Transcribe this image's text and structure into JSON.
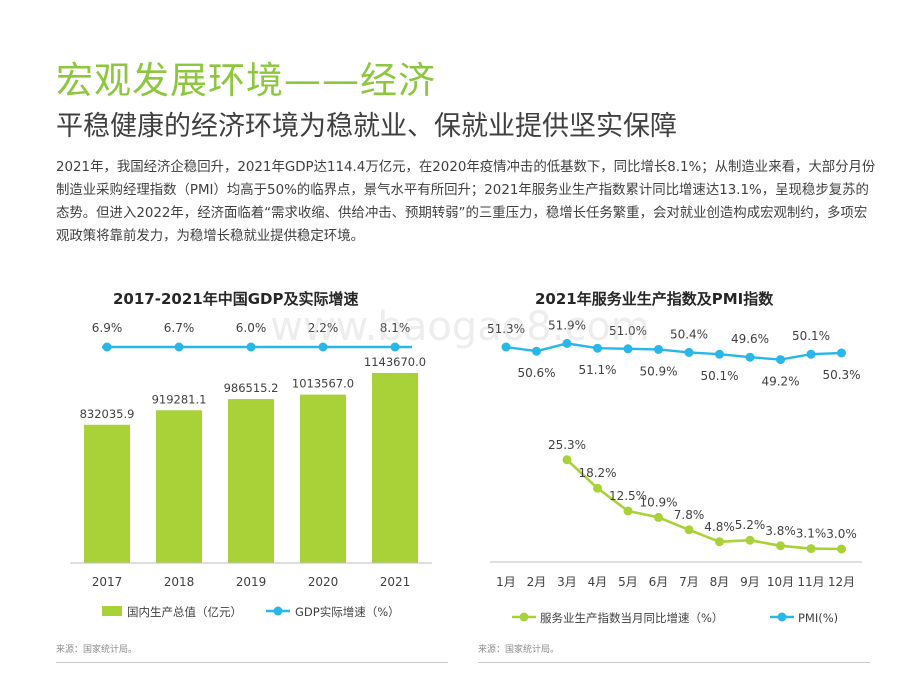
{
  "page": {
    "title": "宏观发展环境——经济",
    "subtitle": "平稳健康的经济环境为稳就业、保就业提供坚实保障",
    "paragraph": "2021年，我国经济企稳回升，2021年GDP达114.4万亿元，在2020年疫情冲击的低基数下，同比增长8.1%；从制造业来看，大部分月份制造业采购经理指数（PMI）均高于50%的临界点，景气水平有所回升；2021年服务业生产指数累计同比增速达13.1%，呈现稳步复苏的态势。但进入2022年，经济面临着“需求收缩、供给冲击、预期转弱”的三重压力，稳增长任务繁重，会对就业创造构成宏观制约，多项宏观政策将靠前发力，为稳增长稳就业提供稳定环境。",
    "source_left": "来源：国家统计局。",
    "source_right": "来源：国家统计局。",
    "watermark": "www.baogao8.com"
  },
  "colors": {
    "accent": "#8dc63f",
    "bar": "#a9d238",
    "line": "#29b6e8",
    "text": "#404040"
  },
  "chart_data": [
    {
      "type": "bar",
      "title": "2017-2021年中国GDP及实际增速",
      "categories": [
        "2017",
        "2018",
        "2019",
        "2020",
        "2021"
      ],
      "series": [
        {
          "name": "国内生产总值（亿元）",
          "type": "bar",
          "values": [
            832035.9,
            919281.1,
            986515.2,
            1013567.0,
            1143670.0
          ],
          "labels": [
            "832035.9",
            "919281.1",
            "986515.2",
            "1013567.0",
            "1143670.0"
          ]
        },
        {
          "name": "GDP实际增速（%）",
          "type": "line",
          "values": [
            6.9,
            6.7,
            6.0,
            2.2,
            8.1
          ],
          "labels": [
            "6.9%",
            "6.7%",
            "6.0%",
            "2.2%",
            "8.1%"
          ]
        }
      ]
    },
    {
      "type": "line",
      "title": "2021年服务业生产指数及PMI指数",
      "categories": [
        "1月",
        "2月",
        "3月",
        "4月",
        "5月",
        "6月",
        "7月",
        "8月",
        "9月",
        "10月",
        "11月",
        "12月"
      ],
      "series": [
        {
          "name": "PMI(%)",
          "values": [
            51.3,
            50.6,
            51.9,
            51.1,
            51.0,
            50.9,
            50.4,
            50.1,
            49.6,
            49.2,
            50.1,
            50.3
          ],
          "labels": [
            "51.3%",
            "50.6%",
            "51.9%",
            "51.1%",
            "51.0%",
            "50.9%",
            "50.4%",
            "50.1%",
            "49.6%",
            "49.2%",
            "50.1%",
            "50.3%"
          ]
        },
        {
          "name": "服务业生产指数当月同比增速（%）",
          "values": [
            null,
            null,
            25.3,
            18.2,
            12.5,
            10.9,
            7.8,
            4.8,
            5.2,
            3.8,
            3.1,
            3.0
          ],
          "labels": [
            null,
            null,
            "25.3%",
            "18.2%",
            "12.5%",
            "10.9%",
            "7.8%",
            "4.8%",
            "5.2%",
            "3.8%",
            "3.1%",
            "3.0%"
          ]
        }
      ]
    }
  ]
}
